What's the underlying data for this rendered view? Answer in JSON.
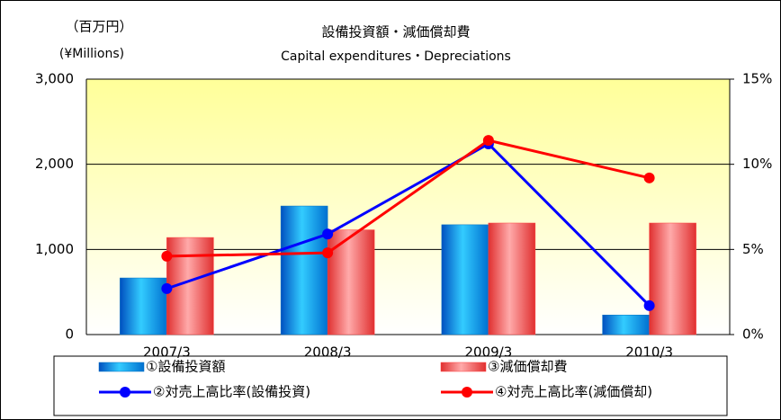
{
  "chart_data": {
    "type": "bar",
    "title": "設備投資額・減価償却費",
    "subtitle": "Capital expenditures・Depreciations",
    "y_unit_label": "（百万円）",
    "y_unit_label_en": "(¥Millions)",
    "categories": [
      "2007/3",
      "2008/3",
      "2009/3",
      "2010/3"
    ],
    "series": [
      {
        "name": "①設備投資額",
        "type": "bar",
        "color": "#0070c0",
        "values": [
          665,
          1510,
          1290,
          230
        ]
      },
      {
        "name": "③減価償却費",
        "type": "bar",
        "color": "#ff4040",
        "values": [
          1140,
          1230,
          1310,
          1310
        ]
      },
      {
        "name": "②対売上高比率(設備投資)",
        "type": "line",
        "axis": "y2",
        "color": "#0000ff",
        "values": [
          2.7,
          5.9,
          11.2,
          1.7
        ]
      },
      {
        "name": "④対売上高比率(減価償却)",
        "type": "line",
        "axis": "y2",
        "color": "#ff0000",
        "values": [
          4.6,
          4.8,
          11.4,
          9.2
        ]
      }
    ],
    "ylim": [
      0,
      3000
    ],
    "yticks": [
      0,
      {
        "value": 1000,
        "label": "1,000"
      },
      {
        "value": 2000,
        "label": "2,000"
      },
      {
        "value": 3000,
        "label": "3,000"
      }
    ],
    "y2lim": [
      0,
      15
    ],
    "y2ticks": [
      {
        "value": 0,
        "label": "0%"
      },
      {
        "value": 5,
        "label": "5%"
      },
      {
        "value": 10,
        "label": "10%"
      },
      {
        "value": 15,
        "label": "15%"
      }
    ],
    "grid": true
  }
}
